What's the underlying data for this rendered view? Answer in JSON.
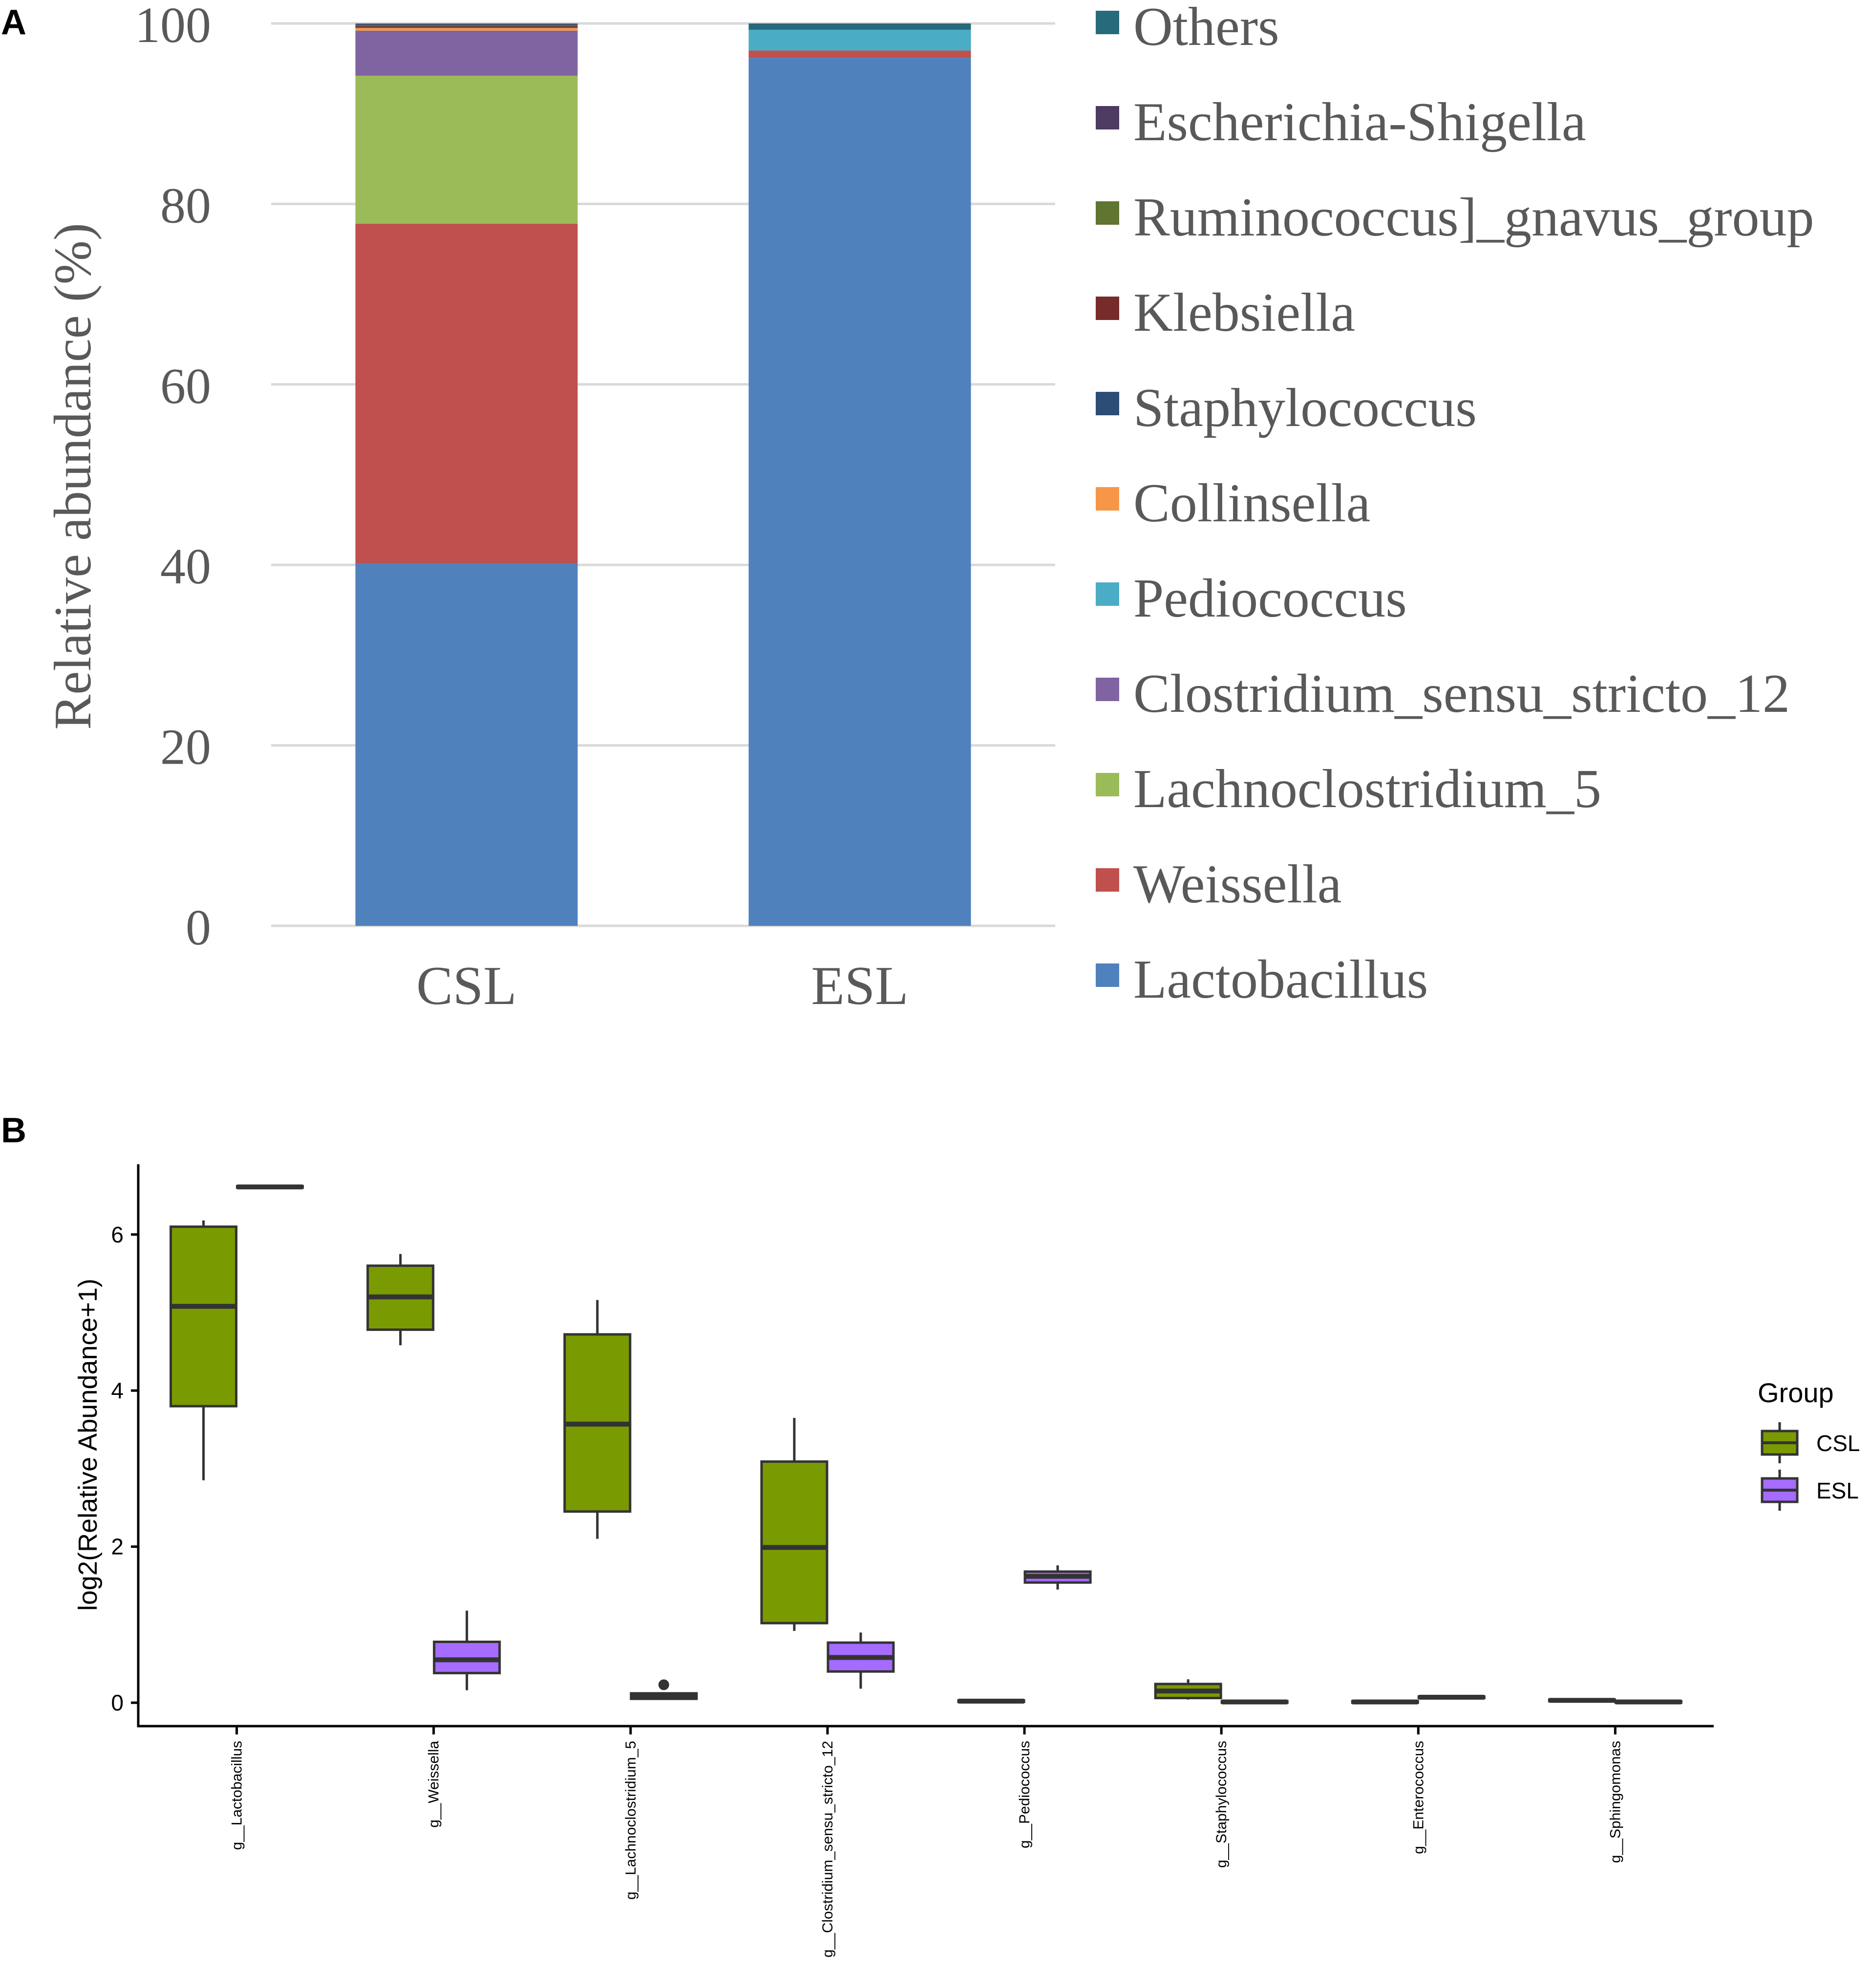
{
  "panels": [
    {
      "letter": "A"
    },
    {
      "letter": "B"
    }
  ],
  "chart_data": [
    {
      "type": "bar",
      "stacked": true,
      "title": "",
      "xlabel": "",
      "ylabel": "Relative abundance (%)",
      "ylim": [
        0,
        100
      ],
      "yticks": [
        0,
        20,
        40,
        60,
        80,
        100
      ],
      "categories": [
        "CSL",
        "ESL"
      ],
      "legend_position": "right",
      "series": [
        {
          "name": "Lactobacillus",
          "color": "#4F81BD",
          "values": [
            40.2,
            96.2
          ]
        },
        {
          "name": "Weissella",
          "color": "#C0504D",
          "values": [
            37.6,
            0.8
          ]
        },
        {
          "name": "Lachnoclostridium_5",
          "color": "#9BBB59",
          "values": [
            16.4,
            0.0
          ]
        },
        {
          "name": "Clostridium_sensu_stricto_12",
          "color": "#8064A2",
          "values": [
            5.0,
            0.0
          ]
        },
        {
          "name": "Pediococcus",
          "color": "#4BACC6",
          "values": [
            0.0,
            2.3
          ]
        },
        {
          "name": "Collinsella",
          "color": "#F79646",
          "values": [
            0.3,
            0.0
          ]
        },
        {
          "name": "Staphylococcus",
          "color": "#2C4D75",
          "values": [
            0.1,
            0.0
          ]
        },
        {
          "name": "Klebsiella",
          "color": "#772C2A",
          "values": [
            0.1,
            0.0
          ]
        },
        {
          "name": "Ruminococcus]_gnavus_group",
          "color": "#5F7530",
          "values": [
            0.1,
            0.0
          ]
        },
        {
          "name": "Escherichia-Shigella",
          "color": "#4D3B62",
          "values": [
            0.1,
            0.0
          ]
        },
        {
          "name": "Others",
          "color": "#276A7C",
          "values": [
            0.1,
            0.7
          ]
        }
      ]
    },
    {
      "type": "box",
      "title": "",
      "xlabel": "",
      "ylabel": "log2(Relative Abundance+1)",
      "ylim": [
        -0.3,
        6.9
      ],
      "yticks": [
        0,
        2,
        4,
        6
      ],
      "categories": [
        "g__Lactobacillus",
        "g__Weissella",
        "g__Lachnoclostridium_5",
        "g__Clostridium_sensu_stricto_12",
        "g__Pediococcus",
        "g__Staphylococcus",
        "g__Enterococcus",
        "g__Sphingomonas"
      ],
      "legend": {
        "title": "Group",
        "position": "right"
      },
      "series": [
        {
          "name": "CSL",
          "color": "#7A9A01",
          "boxes": [
            {
              "min": 2.85,
              "q1": 3.8,
              "median": 5.08,
              "q3": 6.1,
              "max": 6.18,
              "outliers": []
            },
            {
              "min": 4.58,
              "q1": 4.78,
              "median": 5.2,
              "q3": 5.6,
              "max": 5.75,
              "outliers": []
            },
            {
              "min": 2.1,
              "q1": 2.45,
              "median": 3.57,
              "q3": 4.72,
              "max": 5.16,
              "outliers": []
            },
            {
              "min": 0.92,
              "q1": 1.02,
              "median": 1.99,
              "q3": 3.09,
              "max": 3.65,
              "outliers": []
            },
            {
              "min": 0.01,
              "q1": 0.01,
              "median": 0.02,
              "q3": 0.03,
              "max": 0.03,
              "outliers": []
            },
            {
              "min": 0.04,
              "q1": 0.06,
              "median": 0.15,
              "q3": 0.24,
              "max": 0.3,
              "outliers": []
            },
            {
              "min": 0.0,
              "q1": 0.0,
              "median": 0.01,
              "q3": 0.02,
              "max": 0.02,
              "outliers": []
            },
            {
              "min": 0.01,
              "q1": 0.02,
              "median": 0.03,
              "q3": 0.04,
              "max": 0.04,
              "outliers": []
            }
          ]
        },
        {
          "name": "ESL",
          "color": "#A66BFF",
          "boxes": [
            {
              "min": 6.59,
              "q1": 6.6,
              "median": 6.61,
              "q3": 6.62,
              "max": 6.63,
              "outliers": []
            },
            {
              "min": 0.16,
              "q1": 0.38,
              "median": 0.55,
              "q3": 0.78,
              "max": 1.18,
              "outliers": []
            },
            {
              "min": 0.04,
              "q1": 0.05,
              "median": 0.08,
              "q3": 0.12,
              "max": 0.13,
              "outliers": [
                0.23
              ]
            },
            {
              "min": 0.18,
              "q1": 0.4,
              "median": 0.58,
              "q3": 0.77,
              "max": 0.9,
              "outliers": []
            },
            {
              "min": 1.45,
              "q1": 1.54,
              "median": 1.62,
              "q3": 1.68,
              "max": 1.76,
              "outliers": []
            },
            {
              "min": 0.0,
              "q1": 0.0,
              "median": 0.01,
              "q3": 0.02,
              "max": 0.02,
              "outliers": []
            },
            {
              "min": 0.05,
              "q1": 0.06,
              "median": 0.07,
              "q3": 0.08,
              "max": 0.08,
              "outliers": []
            },
            {
              "min": 0.0,
              "q1": 0.0,
              "median": 0.01,
              "q3": 0.02,
              "max": 0.02,
              "outliers": []
            }
          ]
        }
      ]
    }
  ]
}
